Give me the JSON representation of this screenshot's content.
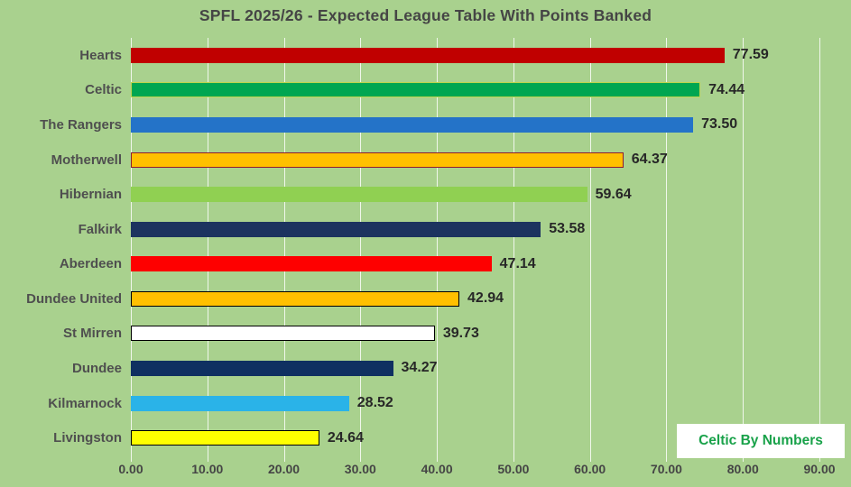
{
  "title": "SPFL 2025/26 - Expected League Table With Points Banked",
  "watermark": {
    "label": "Celtic By Numbers",
    "text_color": "#19a24a",
    "background": "#ffffff"
  },
  "colors": {
    "background": "#a9d18e",
    "gridline": "rgba(255,255,255,0.82)",
    "title_text": "#454545",
    "category_text": "#4f4f4f",
    "value_text": "#272727",
    "tick_text": "#454545"
  },
  "chart_data": {
    "type": "bar",
    "orientation": "horizontal",
    "title": "SPFL 2025/26 - Expected League Table With Points Banked",
    "categories": [
      "Hearts",
      "Celtic",
      "The Rangers",
      "Motherwell",
      "Hibernian",
      "Falkirk",
      "Aberdeen",
      "Dundee United",
      "St Mirren",
      "Dundee",
      "Kilmarnock",
      "Livingston"
    ],
    "values": [
      77.59,
      74.44,
      73.5,
      64.37,
      59.64,
      53.58,
      47.14,
      42.94,
      39.73,
      34.27,
      28.52,
      24.64
    ],
    "value_labels": [
      "77.59",
      "74.44",
      "73.50",
      "64.37",
      "59.64",
      "53.58",
      "47.14",
      "42.94",
      "39.73",
      "34.27",
      "28.52",
      "24.64"
    ],
    "bar_fills": [
      "#c00000",
      "#00a651",
      "#2473c8",
      "#ffc000",
      "#90d052",
      "#1c335f",
      "#fe0000",
      "#ffc000",
      "#ffffff",
      "#0f3061",
      "#2ab3e8",
      "#ffff00"
    ],
    "bar_borders": [
      null,
      "#c0d64e",
      null,
      "#8e1c30",
      null,
      null,
      null,
      "#000000",
      "#000000",
      null,
      null,
      "#000000"
    ],
    "xlabel": "",
    "ylabel": "",
    "xlim": [
      0,
      90
    ],
    "x_tick_labels": [
      "0.00",
      "10.00",
      "20.00",
      "30.00",
      "40.00",
      "50.00",
      "60.00",
      "70.00",
      "80.00",
      "90.00"
    ],
    "grid": "vertical-white-lines",
    "legend": "none",
    "annotations": [
      "Celtic By Numbers"
    ]
  }
}
